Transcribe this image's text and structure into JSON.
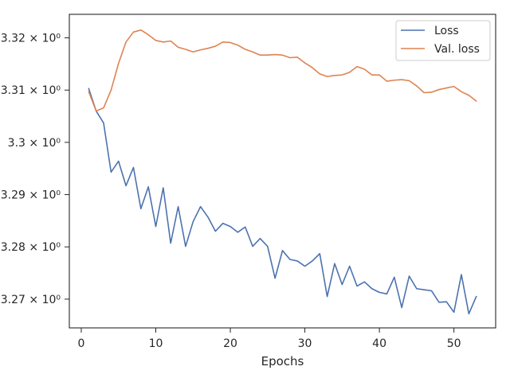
{
  "chart_data": {
    "type": "line",
    "xlabel": "Epochs",
    "ylabel": "",
    "title": "",
    "xlim": [
      -1.6,
      55.6
    ],
    "ylim": [
      3.2645,
      3.3245
    ],
    "x_ticks": [
      0,
      10,
      20,
      30,
      40,
      50
    ],
    "x_tick_labels": [
      "0",
      "10",
      "20",
      "30",
      "40",
      "50"
    ],
    "y_ticks": [
      3.27,
      3.28,
      3.29,
      3.3,
      3.31,
      3.32
    ],
    "y_tick_labels": [
      "3.27 × 10⁰",
      "3.28 × 10⁰",
      "3.29 × 10⁰",
      "3.3 × 10⁰",
      "3.31 × 10⁰",
      "3.32 × 10⁰"
    ],
    "grid": false,
    "legend_position": "top-right",
    "x": [
      1,
      2,
      3,
      4,
      5,
      6,
      7,
      8,
      9,
      10,
      11,
      12,
      13,
      14,
      15,
      16,
      17,
      18,
      19,
      20,
      21,
      22,
      23,
      24,
      25,
      26,
      27,
      28,
      29,
      30,
      31,
      32,
      33,
      34,
      35,
      36,
      37,
      38,
      39,
      40,
      41,
      42,
      43,
      44,
      45,
      46,
      47,
      48,
      49,
      50,
      51,
      52,
      53
    ],
    "series": [
      {
        "name": "Loss",
        "color": "#4c72b0",
        "values": [
          3.3103,
          3.306,
          3.3037,
          3.2943,
          3.2964,
          3.2917,
          3.2952,
          3.2873,
          3.2915,
          3.2839,
          3.2913,
          3.2807,
          3.2877,
          3.2801,
          3.2848,
          3.2877,
          3.2857,
          3.283,
          3.2845,
          3.2839,
          3.2828,
          3.2838,
          3.2801,
          3.2816,
          3.2801,
          3.274,
          3.2793,
          3.2776,
          3.2773,
          3.2763,
          3.2773,
          3.2787,
          3.2705,
          3.2768,
          3.2728,
          3.2763,
          3.2725,
          3.2733,
          3.272,
          3.2713,
          3.271,
          3.2742,
          3.2684,
          3.2744,
          3.272,
          3.2718,
          3.2716,
          3.2694,
          3.2695,
          3.2675,
          3.2747,
          3.2672,
          3.2705
        ]
      },
      {
        "name": "Val. loss",
        "color": "#dd8452",
        "values": [
          3.3097,
          3.306,
          3.3066,
          3.31,
          3.3151,
          3.3192,
          3.3211,
          3.3215,
          3.3206,
          3.3195,
          3.3192,
          3.3194,
          3.3182,
          3.3178,
          3.3173,
          3.3177,
          3.318,
          3.3184,
          3.3192,
          3.3191,
          3.3186,
          3.3178,
          3.3173,
          3.3167,
          3.3167,
          3.3168,
          3.3167,
          3.3162,
          3.3163,
          3.3152,
          3.3143,
          3.3131,
          3.3126,
          3.3128,
          3.3129,
          3.3134,
          3.3145,
          3.314,
          3.3129,
          3.3129,
          3.3117,
          3.3119,
          3.312,
          3.3118,
          3.3108,
          3.3095,
          3.3096,
          3.3101,
          3.3104,
          3.3107,
          3.3097,
          3.309,
          3.3079
        ]
      }
    ]
  }
}
